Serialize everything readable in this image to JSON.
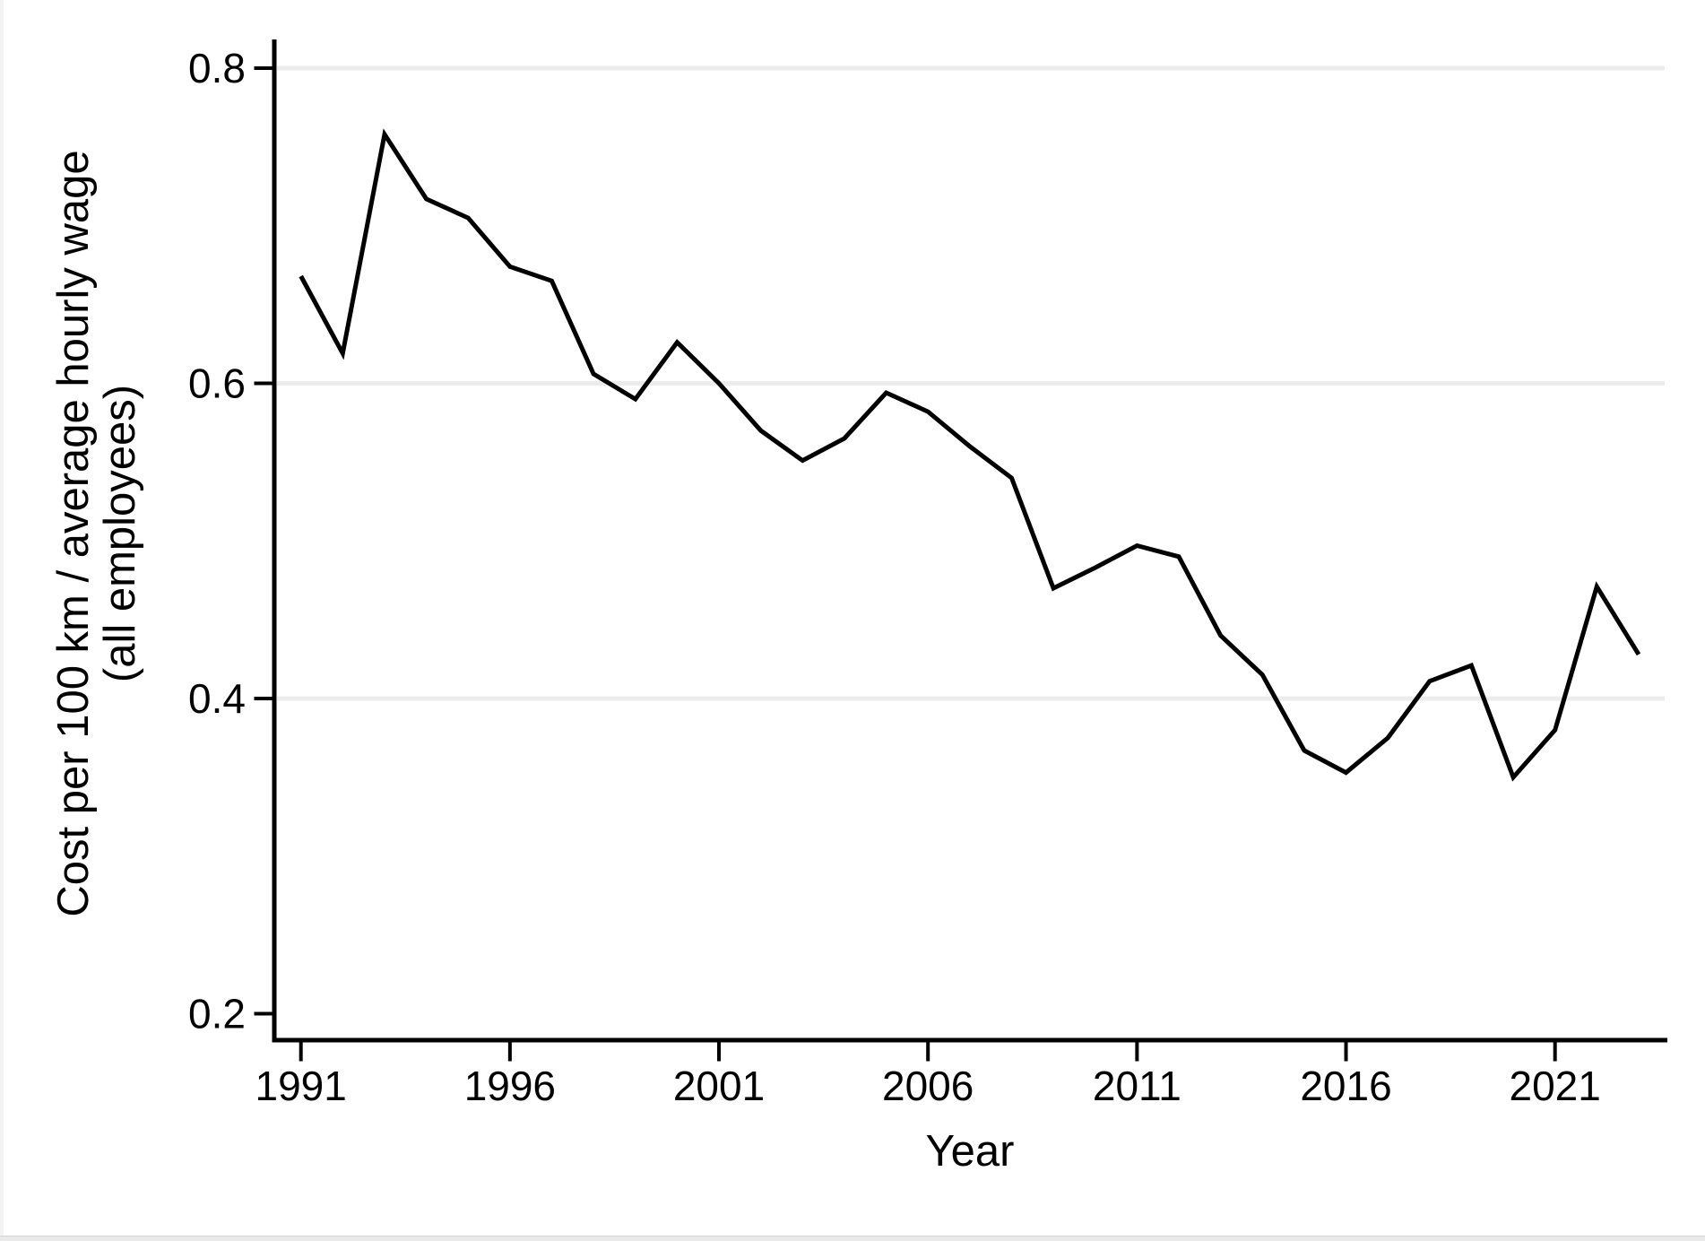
{
  "figure": {
    "xlabel": "Year",
    "ylabel_line1": "Cost per 100 km / average hourly wage",
    "ylabel_line2": "(all employees)"
  },
  "chart_data": {
    "type": "line",
    "title": "",
    "xlabel": "Year",
    "ylabel_lines": [
      "Cost per 100 km / average hourly wage",
      "(all employees)"
    ],
    "x": [
      1991,
      1992,
      1993,
      1994,
      1995,
      1996,
      1997,
      1998,
      1999,
      2000,
      2001,
      2002,
      2003,
      2004,
      2005,
      2006,
      2007,
      2008,
      2009,
      2010,
      2011,
      2012,
      2013,
      2014,
      2015,
      2016,
      2017,
      2018,
      2019,
      2020,
      2021,
      2022,
      2023
    ],
    "values": [
      0.668,
      0.619,
      0.758,
      0.717,
      0.705,
      0.674,
      0.665,
      0.606,
      0.59,
      0.626,
      0.6,
      0.57,
      0.551,
      0.565,
      0.594,
      0.582,
      0.56,
      0.54,
      0.47,
      0.483,
      0.497,
      0.49,
      0.44,
      0.415,
      0.367,
      0.353,
      0.375,
      0.411,
      0.421,
      0.35,
      0.38,
      0.471,
      0.428
    ],
    "x_ticks": [
      1991,
      1996,
      2001,
      2006,
      2011,
      2016,
      2021
    ],
    "y_ticks": [
      0.2,
      0.4,
      0.6,
      0.8
    ],
    "gridline_values": [
      0.4,
      0.6,
      0.8
    ],
    "xlim": [
      1990.3,
      2023.7
    ],
    "ylim": [
      0.183,
      0.818
    ],
    "y_tick_decimals": 1,
    "legend": "none",
    "grid": "horizontal",
    "series_color": "#000000",
    "gridline_color": "#ececec",
    "axis_color": "#000000",
    "background_color": "#ffffff"
  }
}
